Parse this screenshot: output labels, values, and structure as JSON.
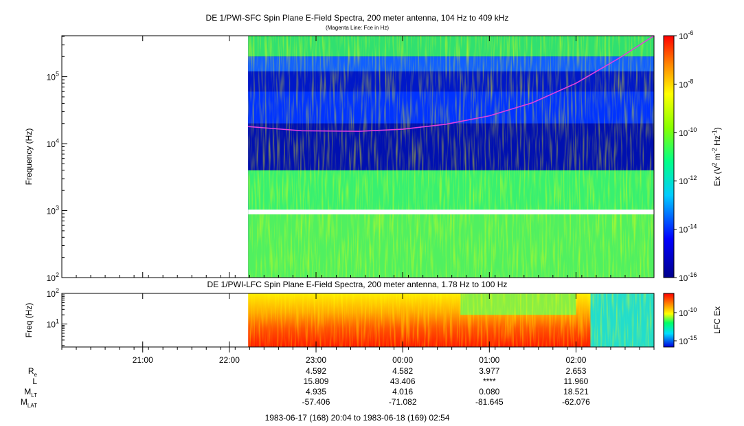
{
  "chart_data": [
    {
      "type": "heatmap",
      "title": "DE 1/PWI-SFC  Spin Plane E-Field Spectra, 200 meter antenna, 104 Hz to 409 kHz",
      "subtitle": "(Magenta Line: Fce in Hz)",
      "ylabel": "Frequency (Hz)",
      "yscale": "log",
      "ylim": [
        100,
        409000
      ],
      "yticks": [
        {
          "base": "10",
          "exp": "2",
          "value": 100
        },
        {
          "base": "10",
          "exp": "3",
          "value": 1000
        },
        {
          "base": "10",
          "exp": "4",
          "value": 10000
        },
        {
          "base": "10",
          "exp": "5",
          "value": 100000
        }
      ],
      "colorbar": {
        "label_parts": [
          "Ex (V",
          "2",
          " m",
          "-2",
          " Hz",
          "-1",
          ")"
        ],
        "scale": "log",
        "range": [
          1e-16,
          1e-06
        ],
        "ticks": [
          {
            "base": "10",
            "exp": "-6"
          },
          {
            "base": "10",
            "exp": "-8"
          },
          {
            "base": "10",
            "exp": "-10"
          },
          {
            "base": "10",
            "exp": "-12"
          },
          {
            "base": "10",
            "exp": "-14"
          },
          {
            "base": "10",
            "exp": "-16"
          }
        ]
      },
      "data_start_time": "22:13",
      "fce_line": {
        "color": "#e040e0",
        "times": [
          "22:13",
          "22:50",
          "23:30",
          "00:00",
          "00:30",
          "01:00",
          "01:30",
          "02:00",
          "02:30",
          "02:54"
        ],
        "hz": [
          18000,
          15600,
          15300,
          16400,
          19500,
          26000,
          41000,
          80000,
          190000,
          409000
        ]
      }
    },
    {
      "type": "heatmap",
      "title": "DE 1/PWI-LFC  Spin Plane E-Field Spectra, 200 meter antenna, 1.78 Hz to 100 Hz",
      "ylabel": "Freq (Hz)",
      "yscale": "log",
      "ylim": [
        1.78,
        100
      ],
      "yticks": [
        {
          "base": "10",
          "exp": "1",
          "value": 10
        },
        {
          "base": "10",
          "exp": "2",
          "value": 100
        }
      ],
      "colorbar": {
        "label": "LFC Ex",
        "ticks": [
          {
            "base": "10",
            "exp": "-10"
          },
          {
            "base": "10",
            "exp": "-15"
          }
        ]
      }
    }
  ],
  "time_axis": {
    "start": "20:04",
    "end": "02:54",
    "labels": [
      "21:00",
      "22:00",
      "23:00",
      "00:00",
      "01:00",
      "02:00"
    ]
  },
  "ephemeris": {
    "rows": [
      {
        "name": "R",
        "sub": "e",
        "values": [
          "4.592",
          "4.582",
          "3.977",
          "2.653"
        ]
      },
      {
        "name": "L",
        "sub": "",
        "values": [
          "15.809",
          "43.406",
          "****",
          "11.960"
        ]
      },
      {
        "name": "M",
        "sub": "LT",
        "values": [
          "4.935",
          "4.016",
          "0.080",
          "18.521"
        ]
      },
      {
        "name": "M",
        "sub": "LAT",
        "values": [
          "-57.406",
          "-71.082",
          "-81.645",
          "-62.076"
        ]
      }
    ]
  },
  "footer": "1983-06-17 (168) 20:04 to 1983-06-18 (169) 02:54",
  "colors": {
    "background": "#000090",
    "fce": "#e040e0"
  }
}
